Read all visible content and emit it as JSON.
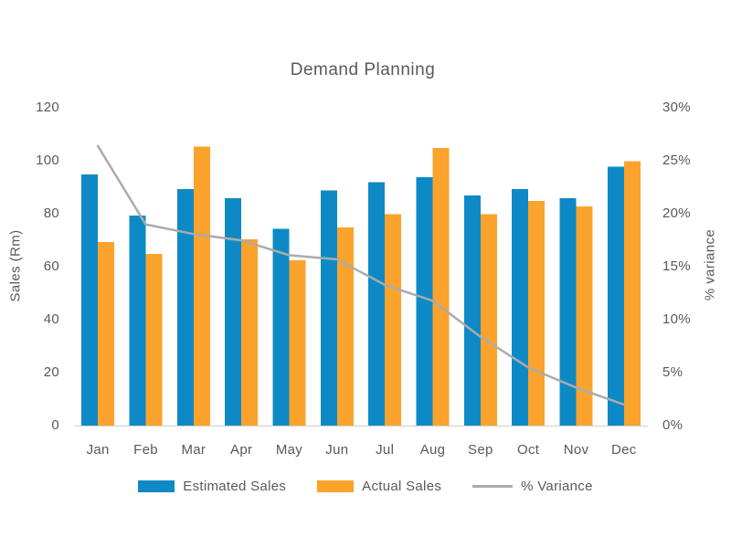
{
  "chart_data": {
    "type": "combo-bar-line",
    "title": "Demand Planning",
    "categories": [
      "Jan",
      "Feb",
      "Mar",
      "Apr",
      "May",
      "Jun",
      "Jul",
      "Aug",
      "Sep",
      "Oct",
      "Nov",
      "Dec"
    ],
    "series": [
      {
        "name": "Estimated Sales",
        "type": "bar",
        "axis": "left",
        "color": "#0D8AC5",
        "values": [
          94.5,
          79,
          89,
          85.5,
          74,
          88.5,
          91.5,
          93.5,
          86.5,
          89,
          85.5,
          97.5
        ]
      },
      {
        "name": "Actual Sales",
        "type": "bar",
        "axis": "left",
        "color": "#FBA32C",
        "values": [
          69,
          64.5,
          105,
          70,
          62,
          74.5,
          79.5,
          104.5,
          79.5,
          84.5,
          82.5,
          99.5
        ]
      },
      {
        "name": "% Variance",
        "type": "line",
        "axis": "right",
        "color": "#ABABAB",
        "values": [
          26.3,
          18.9,
          18,
          17.4,
          16,
          15.6,
          13.2,
          11.7,
          8.3,
          5.4,
          3.5,
          1.9
        ]
      }
    ],
    "left_axis": {
      "label": "Sales (Rm)",
      "min": 0,
      "max": 120,
      "step": 20,
      "ticks": [
        "0",
        "20",
        "40",
        "60",
        "80",
        "100",
        "120"
      ]
    },
    "right_axis": {
      "label": "% variance",
      "min": 0,
      "max": 30,
      "step": 5,
      "ticks": [
        "0%",
        "5%",
        "10%",
        "15%",
        "20%",
        "25%",
        "30%"
      ]
    },
    "legend_position": "bottom",
    "grid": false,
    "colors": {
      "text": "#595959",
      "axis_line": "#D9D9D9",
      "background": "#FFFFFF"
    }
  }
}
